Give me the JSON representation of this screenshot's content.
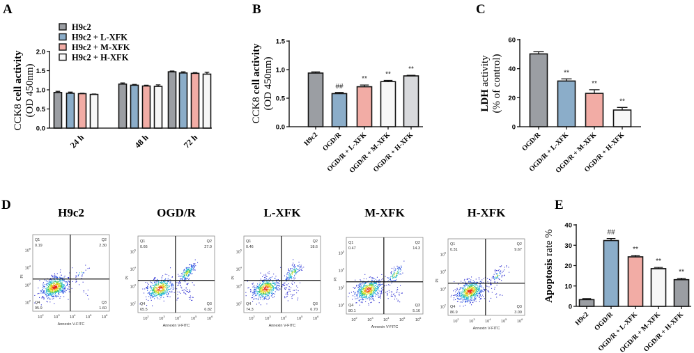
{
  "panels": {
    "A": "A",
    "B": "B",
    "C": "C",
    "D": "D",
    "E": "E"
  },
  "colors": {
    "gray": "#9b9ea3",
    "blue": "#8badc9",
    "pink": "#f2aca5",
    "white": "#f7f7f7",
    "lightgray": "#d8d9dc"
  },
  "chart_data": [
    {
      "id": "A",
      "type": "bar",
      "title": "",
      "ylabel_line1_normal": "CCK8",
      "ylabel_line1_bold": "cell activity",
      "ylabel_line2": "(OD 450nm)",
      "ylim": [
        0,
        2.0
      ],
      "yticks": [
        "0.0",
        "0.5",
        "1.0",
        "1.5",
        "2.0"
      ],
      "ytick_values": [
        0,
        0.5,
        1.0,
        1.5,
        2.0
      ],
      "categories": [
        "24 h",
        "48 h",
        "72 h"
      ],
      "legend": "top-left",
      "series": [
        {
          "name": "H9c2",
          "color": "#9b9ea3",
          "values": [
            0.93,
            1.15,
            1.47
          ],
          "errors": [
            0.03,
            0.03,
            0.02
          ]
        },
        {
          "name": "H9c2 + L-XFK",
          "color": "#8badc9",
          "values": [
            0.91,
            1.12,
            1.44
          ],
          "errors": [
            0.03,
            0.02,
            0.03
          ]
        },
        {
          "name": "H9c2 + M-XFK",
          "color": "#f2aca5",
          "values": [
            0.9,
            1.1,
            1.43
          ],
          "errors": [
            0.01,
            0.02,
            0.02
          ]
        },
        {
          "name": "H9c2 + H-XFK",
          "color": "#f7f7f7",
          "values": [
            0.88,
            1.09,
            1.41
          ],
          "errors": [
            0.01,
            0.04,
            0.05
          ]
        }
      ]
    },
    {
      "id": "B",
      "type": "bar",
      "ylabel_line1_normal": "CCK8",
      "ylabel_line1_bold": "cell activity",
      "ylabel_line2": "(OD 450nm)",
      "ylim": [
        0,
        1.5
      ],
      "yticks": [
        "0.0",
        "0.5",
        "1.0",
        "1.5"
      ],
      "ytick_values": [
        0,
        0.5,
        1.0,
        1.5
      ],
      "categories": [
        "H9c2",
        "OGD/R",
        "OGD/R + L-XFK",
        "OGD/R + M-XFK",
        "OGD/R + H-XFK"
      ],
      "values": [
        0.94,
        0.58,
        0.7,
        0.79,
        0.89
      ],
      "errors": [
        0.02,
        0.02,
        0.03,
        0.02,
        0.01
      ],
      "colors": [
        "#9b9ea3",
        "#8badc9",
        "#f2aca5",
        "#f7f7f7",
        "#d8d9dc"
      ],
      "annotations": [
        "",
        "##",
        "**",
        "**",
        "**"
      ]
    },
    {
      "id": "C",
      "type": "bar",
      "ylabel_line1_bold": "LDH",
      "ylabel_line1_normal": "activity",
      "ylabel_line2": "(% of control)",
      "ylim": [
        0,
        60
      ],
      "yticks": [
        "0",
        "20",
        "40",
        "60"
      ],
      "ytick_values": [
        0,
        20,
        40,
        60
      ],
      "categories": [
        "OGD/R",
        "OGD/R + L-XFK",
        "OGD/R + M-XFK",
        "OGD/R + H-XFK"
      ],
      "values": [
        50.2,
        31.5,
        23.0,
        11.5
      ],
      "errors": [
        1.5,
        1.5,
        2.5,
        1.8
      ],
      "colors": [
        "#9b9ea3",
        "#8badc9",
        "#f2aca5",
        "#f7f7f7"
      ],
      "annotations": [
        "",
        "**",
        "**",
        "**"
      ]
    },
    {
      "id": "D",
      "type": "scatter",
      "xlabel": "Annexin V-FITC",
      "ylabel": "PI",
      "x_tick_exponents": [
        2,
        3,
        4,
        5,
        6
      ],
      "y_tick_exponents": [
        2,
        3,
        4,
        5
      ],
      "tick_base": "10",
      "plots": [
        {
          "title": "H9c2",
          "Q1": "0.19",
          "Q2": "2.30",
          "Q3": "1.60",
          "Q4": "95.9"
        },
        {
          "title": "OGD/R",
          "Q1": "0.66",
          "Q2": "27.0",
          "Q3": "6.82",
          "Q4": "65.5"
        },
        {
          "title": "L-XFK",
          "Q1": "0.46",
          "Q2": "18.6",
          "Q3": "6.70",
          "Q4": "74.3"
        },
        {
          "title": "M-XFK",
          "Q1": "0.47",
          "Q2": "14.3",
          "Q3": "5.16",
          "Q4": "80.1"
        },
        {
          "title": "H-XFK",
          "Q1": "0.31",
          "Q2": "9.67",
          "Q3": "3.09",
          "Q4": "86.9"
        }
      ],
      "quadrant_names": [
        "Q1",
        "Q2",
        "Q3",
        "Q4"
      ]
    },
    {
      "id": "E",
      "type": "bar",
      "ylabel_bold": "Apoptosis",
      "ylabel_normal": "rate %",
      "ylim": [
        0,
        40
      ],
      "yticks": [
        "0",
        "10",
        "20",
        "30",
        "40"
      ],
      "ytick_values": [
        0,
        10,
        20,
        30,
        40
      ],
      "categories": [
        "H9c2",
        "OGD/R",
        "OGD/R + L-XFK",
        "OGD/R + M-XFK",
        "OGD/R + H-XFK"
      ],
      "values": [
        3.3,
        32.3,
        24.3,
        18.5,
        13.1
      ],
      "errors": [
        0.5,
        1.0,
        0.7,
        0.6,
        0.7
      ],
      "colors": [
        "#9b9ea3",
        "#8badc9",
        "#f2aca5",
        "#f7f7f7",
        "#9b9ea3"
      ],
      "annotations": [
        "",
        "##",
        "**",
        "**",
        "**"
      ]
    }
  ]
}
